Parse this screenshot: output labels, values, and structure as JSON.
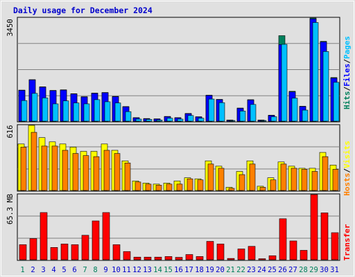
{
  "title": "Daily usage for December 2024",
  "panels": {
    "top": {
      "max_label": "3450",
      "side_label": [
        "Hits",
        "/",
        "Files",
        "/",
        "Pages"
      ]
    },
    "middle": {
      "max_label": "616",
      "side_label": [
        "Hosts",
        "/",
        "Visits"
      ]
    },
    "bottom": {
      "max_label": "65.3 MB",
      "side_label": [
        "Transfer"
      ]
    }
  },
  "colors": {
    "background": "#e0e0e0",
    "title": "#0000cc",
    "hits": "#00805c",
    "files": "#0000ff",
    "pages": "#00c0ff",
    "hosts": "#ff8000",
    "visits": "#ffff00",
    "transfer": "#ff0000",
    "weekday_label": "#0000cc",
    "weekend_label": "#00805c"
  },
  "chart_data": [
    {
      "type": "bar",
      "title": "Daily usage for December 2024",
      "categories": [
        "1",
        "2",
        "3",
        "4",
        "5",
        "6",
        "7",
        "8",
        "9",
        "10",
        "11",
        "12",
        "13",
        "14",
        "15",
        "16",
        "17",
        "18",
        "19",
        "20",
        "21",
        "22",
        "23",
        "24",
        "25",
        "26",
        "27",
        "28",
        "29",
        "30",
        "31"
      ],
      "weekend_days": [
        "1",
        "7",
        "8",
        "14",
        "15",
        "21",
        "22",
        "28",
        "29"
      ],
      "ylim": [
        0,
        3450
      ],
      "series": [
        {
          "name": "Hits",
          "values": [
            1040,
            1390,
            1150,
            1030,
            1050,
            920,
            820,
            940,
            960,
            830,
            490,
            120,
            90,
            80,
            160,
            120,
            260,
            150,
            870,
            730,
            40,
            440,
            720,
            40,
            200,
            2860,
            1000,
            500,
            3450,
            2670,
            1460
          ]
        },
        {
          "name": "Files",
          "values": [
            1030,
            1380,
            1140,
            1020,
            1040,
            910,
            810,
            930,
            950,
            820,
            480,
            110,
            80,
            70,
            150,
            110,
            250,
            140,
            860,
            720,
            30,
            430,
            710,
            30,
            190,
            2560,
            980,
            490,
            3420,
            2650,
            1440
          ]
        },
        {
          "name": "Pages",
          "values": [
            690,
            930,
            780,
            580,
            680,
            610,
            580,
            720,
            650,
            610,
            320,
            70,
            60,
            40,
            100,
            70,
            190,
            100,
            740,
            620,
            20,
            340,
            560,
            20,
            150,
            2570,
            770,
            370,
            3300,
            2330,
            1300
          ]
        }
      ]
    },
    {
      "type": "bar",
      "categories": [
        "1",
        "2",
        "3",
        "4",
        "5",
        "6",
        "7",
        "8",
        "9",
        "10",
        "11",
        "12",
        "13",
        "14",
        "15",
        "16",
        "17",
        "18",
        "19",
        "20",
        "21",
        "22",
        "23",
        "24",
        "25",
        "26",
        "27",
        "28",
        "29",
        "30",
        "31"
      ],
      "ylim": [
        0,
        616
      ],
      "series": [
        {
          "name": "Visits",
          "values": [
            440,
            616,
            500,
            460,
            440,
            410,
            370,
            370,
            440,
            380,
            280,
            90,
            70,
            60,
            70,
            90,
            120,
            110,
            280,
            230,
            30,
            180,
            280,
            40,
            120,
            270,
            230,
            210,
            210,
            360,
            240
          ]
        },
        {
          "name": "Hosts",
          "values": [
            410,
            550,
            420,
            420,
            380,
            350,
            330,
            320,
            380,
            350,
            260,
            80,
            60,
            50,
            60,
            60,
            110,
            100,
            250,
            210,
            20,
            150,
            250,
            30,
            100,
            250,
            210,
            200,
            180,
            320,
            200
          ]
        }
      ]
    },
    {
      "type": "bar",
      "categories": [
        "1",
        "2",
        "3",
        "4",
        "5",
        "6",
        "7",
        "8",
        "9",
        "10",
        "11",
        "12",
        "13",
        "14",
        "15",
        "16",
        "17",
        "18",
        "19",
        "20",
        "21",
        "22",
        "23",
        "24",
        "25",
        "26",
        "27",
        "28",
        "29",
        "30",
        "31"
      ],
      "ylabel": "65.3 MB",
      "ylim": [
        0,
        65.3
      ],
      "series": [
        {
          "name": "Transfer",
          "values": [
            15.1,
            21.2,
            47.3,
            12.3,
            15.8,
            15.1,
            24.5,
            38.9,
            47.3,
            15.1,
            8.2,
            2.6,
            2.6,
            2.6,
            3.2,
            2.4,
            5.2,
            3.2,
            18.4,
            15.8,
            1.3,
            10.8,
            13.4,
            1.0,
            4.0,
            41.1,
            18.8,
            9.4,
            65.3,
            47.0,
            27.1
          ]
        }
      ]
    }
  ]
}
